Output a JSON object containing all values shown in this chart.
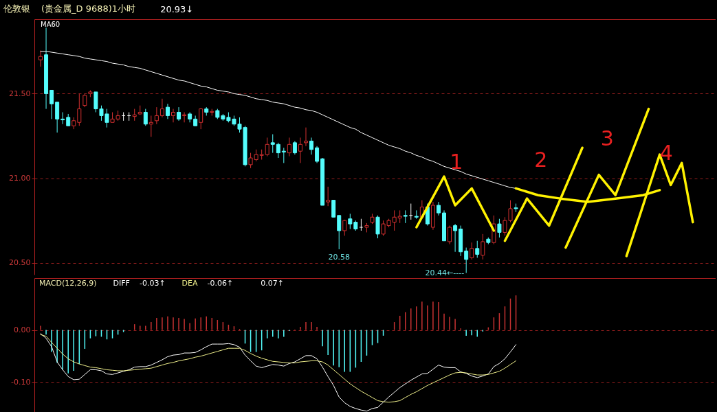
{
  "chart_data": [
    {
      "type": "candlestick",
      "title": "伦敦银",
      "subtitle": "(贵金属_D 9688)1小时",
      "categories": [
        null,
        null,
        null,
        null,
        null,
        null,
        null,
        null,
        null,
        null,
        null,
        null,
        null,
        null,
        null,
        null,
        null,
        null,
        null,
        null,
        null,
        null,
        null,
        null,
        null,
        null,
        null,
        null,
        null,
        null,
        null,
        null,
        null,
        null,
        null,
        null,
        null,
        null,
        null,
        null,
        null,
        null,
        null,
        null,
        null,
        null,
        null,
        null,
        null,
        null,
        null,
        null,
        null,
        null,
        null,
        null,
        null,
        null,
        null,
        null,
        null,
        null,
        null,
        null,
        null,
        null,
        null,
        null,
        null,
        null,
        null,
        null,
        null,
        null,
        null,
        null,
        null,
        null,
        null,
        null,
        null,
        null,
        null,
        null,
        null,
        null,
        null,
        null,
        null,
        null,
        null,
        null,
        null,
        null,
        null,
        null,
        null,
        null,
        null,
        null,
        null,
        null,
        null,
        null,
        null,
        null,
        null,
        null,
        null,
        null,
        null,
        null,
        null,
        null,
        null,
        null,
        null,
        null,
        null,
        null,
        null,
        null
      ],
      "ohlc": [
        [
          21.7,
          21.755,
          21.66,
          21.72
        ],
        [
          21.73,
          21.89,
          21.41,
          21.5
        ],
        [
          21.52,
          21.52,
          21.35,
          21.44
        ],
        [
          21.45,
          21.45,
          21.27,
          21.35
        ],
        [
          21.35,
          21.39,
          21.32,
          21.345
        ],
        [
          21.36,
          21.38,
          21.31,
          21.31
        ],
        [
          21.31,
          21.36,
          21.29,
          21.34
        ],
        [
          21.33,
          21.5,
          21.31,
          21.41
        ],
        [
          21.43,
          21.5,
          21.42,
          21.49
        ],
        [
          21.5,
          21.52,
          21.48,
          21.51
        ],
        [
          21.51,
          21.51,
          21.39,
          21.41
        ],
        [
          21.41,
          21.43,
          21.34,
          21.37
        ],
        [
          21.38,
          21.41,
          21.3,
          21.33
        ],
        [
          21.33,
          21.39,
          21.33,
          21.35
        ],
        [
          21.35,
          21.4,
          21.34,
          21.37
        ],
        [
          21.37,
          21.39,
          21.34,
          21.37
        ],
        [
          21.37,
          21.39,
          21.34,
          21.37
        ],
        [
          21.365,
          21.41,
          21.34,
          21.375
        ],
        [
          21.38,
          21.43,
          21.375,
          21.39
        ],
        [
          21.39,
          21.41,
          21.31,
          21.32
        ],
        [
          21.32,
          21.37,
          21.245,
          21.33
        ],
        [
          21.34,
          21.42,
          21.32,
          21.37
        ],
        [
          21.37,
          21.47,
          21.36,
          21.41
        ],
        [
          21.42,
          21.44,
          21.35,
          21.37
        ],
        [
          21.37,
          21.41,
          21.33,
          21.39
        ],
        [
          21.39,
          21.42,
          21.34,
          21.35
        ],
        [
          21.37,
          21.39,
          21.33,
          21.375
        ],
        [
          21.38,
          21.39,
          21.33,
          21.35
        ],
        [
          21.35,
          21.37,
          21.31,
          21.31
        ],
        [
          21.33,
          21.415,
          21.29,
          21.41
        ],
        [
          21.41,
          21.42,
          21.37,
          21.39
        ],
        [
          21.39,
          21.41,
          21.37,
          21.395
        ],
        [
          21.4,
          21.41,
          21.35,
          21.36
        ],
        [
          21.37,
          21.38,
          21.34,
          21.35
        ],
        [
          21.36,
          21.39,
          21.33,
          21.34
        ],
        [
          21.35,
          21.37,
          21.31,
          21.32
        ],
        [
          21.32,
          21.36,
          21.27,
          21.29
        ],
        [
          21.3,
          21.31,
          21.07,
          21.08
        ],
        [
          21.08,
          21.15,
          21.06,
          21.12
        ],
        [
          21.11,
          21.17,
          21.1,
          21.14
        ],
        [
          21.135,
          21.17,
          21.11,
          21.14
        ],
        [
          21.14,
          21.24,
          21.13,
          21.2
        ],
        [
          21.21,
          21.26,
          21.15,
          21.2
        ],
        [
          21.2,
          21.21,
          21.12,
          21.15
        ],
        [
          21.16,
          21.18,
          21.09,
          21.155
        ],
        [
          21.15,
          21.24,
          21.13,
          21.2
        ],
        [
          21.21,
          21.22,
          21.14,
          21.15
        ],
        [
          21.16,
          21.24,
          21.09,
          21.2
        ],
        [
          21.21,
          21.3,
          21.19,
          21.22
        ],
        [
          21.22,
          21.24,
          21.14,
          21.17
        ],
        [
          21.18,
          21.19,
          21.09,
          21.1
        ],
        [
          21.115,
          21.12,
          20.84,
          20.84
        ],
        [
          20.86,
          20.95,
          20.835,
          20.87
        ],
        [
          20.87,
          20.87,
          20.77,
          20.77
        ],
        [
          20.78,
          20.78,
          20.58,
          20.69
        ],
        [
          20.69,
          20.755,
          20.66,
          20.75
        ],
        [
          20.76,
          20.79,
          20.7,
          20.73
        ],
        [
          20.74,
          20.75,
          20.69,
          20.7
        ],
        [
          20.71,
          20.76,
          20.69,
          20.71
        ],
        [
          20.71,
          20.735,
          20.68,
          20.72
        ],
        [
          20.74,
          20.79,
          20.73,
          20.77
        ],
        [
          20.77,
          20.78,
          20.645,
          20.67
        ],
        [
          20.67,
          20.75,
          20.66,
          20.73
        ],
        [
          20.72,
          20.76,
          20.71,
          20.75
        ],
        [
          20.74,
          20.81,
          20.69,
          20.77
        ],
        [
          20.765,
          20.81,
          20.735,
          20.775
        ],
        [
          20.78,
          20.81,
          20.735,
          20.775
        ],
        [
          20.78,
          20.85,
          20.755,
          20.78
        ],
        [
          20.775,
          20.81,
          20.76,
          20.77
        ],
        [
          20.77,
          20.87,
          20.77,
          20.83
        ],
        [
          20.83,
          20.85,
          20.72,
          20.73
        ],
        [
          20.71,
          20.86,
          20.695,
          20.84
        ],
        [
          20.84,
          20.86,
          20.78,
          20.795
        ],
        [
          20.795,
          20.81,
          20.63,
          20.63
        ],
        [
          20.625,
          20.72,
          20.61,
          20.71
        ],
        [
          20.72,
          20.73,
          20.565,
          20.69
        ],
        [
          20.7,
          20.72,
          20.54,
          20.565
        ],
        [
          20.57,
          20.59,
          20.44,
          20.52
        ],
        [
          20.53,
          20.62,
          20.52,
          20.585
        ],
        [
          20.585,
          20.63,
          20.53,
          20.55
        ],
        [
          20.545,
          20.67,
          20.52,
          20.625
        ],
        [
          20.64,
          20.65,
          20.61,
          20.62
        ],
        [
          20.62,
          20.78,
          20.61,
          20.73
        ],
        [
          20.73,
          20.76,
          20.65,
          20.68
        ],
        [
          20.68,
          20.77,
          20.66,
          20.75
        ],
        [
          20.75,
          20.87,
          20.74,
          20.82
        ],
        [
          20.825,
          20.85,
          20.8,
          20.82
        ],
        null,
        null,
        null,
        null,
        null,
        null,
        null,
        null,
        null,
        null,
        null,
        null,
        null,
        null,
        null,
        null,
        null,
        null,
        null,
        null,
        null,
        null,
        null,
        null,
        null,
        null,
        null,
        null,
        null,
        null,
        null,
        null,
        null,
        null,
        null
      ],
      "colors": [
        "#d43030",
        "#54fcfc",
        "#54fcfc",
        "#54fcfc",
        "#54fcfc",
        "#54fcfc",
        "#d43030",
        "#d43030",
        "#d43030",
        "#d43030",
        "#54fcfc",
        "#54fcfc",
        "#54fcfc",
        "#d43030",
        "#d43030",
        "#ffffff",
        "#ffffff",
        "#d43030",
        "#d43030",
        "#54fcfc",
        "#d43030",
        "#d43030",
        "#d43030",
        "#54fcfc",
        "#d43030",
        "#54fcfc",
        "#d43030",
        "#54fcfc",
        "#54fcfc",
        "#d43030",
        "#54fcfc",
        "#d43030",
        "#54fcfc",
        "#54fcfc",
        "#54fcfc",
        "#54fcfc",
        "#54fcfc",
        "#54fcfc",
        "#d43030",
        "#d43030",
        "#d43030",
        "#d43030",
        "#54fcfc",
        "#54fcfc",
        "#54fcfc",
        "#d43030",
        "#54fcfc",
        "#d43030",
        "#d43030",
        "#54fcfc",
        "#54fcfc",
        "#54fcfc",
        "#d43030",
        "#54fcfc",
        "#54fcfc",
        "#d43030",
        "#54fcfc",
        "#54fcfc",
        "#ffffff",
        "#d43030",
        "#d43030",
        "#54fcfc",
        "#d43030",
        "#d43030",
        "#d43030",
        "#d43030",
        "#54fcfc",
        "#ffffff",
        "#54fcfc",
        "#d43030",
        "#54fcfc",
        "#d43030",
        "#54fcfc",
        "#54fcfc",
        "#d43030",
        "#54fcfc",
        "#54fcfc",
        "#54fcfc",
        "#d43030",
        "#54fcfc",
        "#d43030",
        "#54fcfc",
        "#d43030",
        "#54fcfc",
        "#d43030",
        "#d43030",
        "#54fcfc",
        null,
        null,
        null,
        null,
        null,
        null,
        null,
        null,
        null,
        null,
        null,
        null,
        null,
        null,
        null,
        null,
        null,
        null,
        null,
        null,
        null,
        null,
        null,
        null,
        null,
        null,
        null,
        null,
        null,
        null,
        null,
        null,
        null,
        null,
        null
      ],
      "series": [
        {
          "name": "MA60",
          "type": "line",
          "color": "#ffffff",
          "values": [
            21.75,
            21.75,
            21.745,
            21.74,
            21.735,
            21.73,
            21.725,
            21.72,
            21.71,
            21.705,
            21.7,
            21.695,
            21.69,
            21.68,
            21.675,
            21.67,
            21.66,
            21.655,
            21.65,
            21.64,
            21.63,
            21.62,
            21.61,
            21.6,
            21.59,
            21.58,
            21.575,
            21.565,
            21.555,
            21.545,
            21.54,
            21.53,
            21.52,
            21.515,
            21.51,
            21.5,
            21.495,
            21.49,
            21.48,
            21.47,
            21.465,
            21.46,
            21.45,
            21.445,
            21.44,
            21.43,
            21.42,
            21.415,
            21.405,
            21.4,
            21.39,
            21.375,
            21.36,
            21.345,
            21.33,
            21.315,
            21.3,
            21.29,
            21.27,
            21.255,
            21.24,
            21.225,
            21.21,
            21.195,
            21.185,
            21.175,
            21.16,
            21.15,
            21.135,
            21.125,
            21.11,
            21.1,
            21.085,
            21.07,
            21.06,
            21.05,
            21.04,
            21.025,
            21.015,
            21.005,
            20.995,
            20.985,
            20.975,
            20.965,
            20.955,
            20.945,
            20.94,
            null,
            null,
            null,
            null,
            null,
            null,
            null,
            null,
            null,
            null,
            null,
            null,
            null,
            null,
            null,
            null,
            null,
            null,
            null,
            null,
            null,
            null,
            null,
            null,
            null,
            null,
            null,
            null,
            null,
            null,
            null,
            null,
            null,
            null,
            null
          ]
        },
        {
          "name": "1",
          "type": "line",
          "color": "#fff200",
          "values": [
            null,
            null,
            null,
            null,
            null,
            null,
            null,
            null,
            null,
            null,
            null,
            null,
            null,
            null,
            null,
            null,
            null,
            null,
            null,
            null,
            null,
            null,
            null,
            null,
            null,
            null,
            null,
            null,
            null,
            null,
            null,
            null,
            null,
            null,
            null,
            null,
            null,
            null,
            null,
            null,
            null,
            null,
            null,
            null,
            null,
            null,
            null,
            null,
            null,
            null,
            null,
            null,
            null,
            null,
            null,
            null,
            null,
            null,
            null,
            null,
            null,
            null,
            null,
            null,
            null,
            null,
            null,
            null,
            20.71,
            null,
            null,
            null,
            null,
            21.01,
            null,
            20.84,
            null,
            null,
            20.94,
            null,
            null,
            null,
            20.69,
            null,
            null,
            null,
            null,
            null,
            null,
            null,
            null,
            null,
            null,
            null,
            null,
            null,
            null,
            null,
            null,
            null,
            null,
            null,
            null,
            null,
            null,
            null,
            null,
            null,
            null,
            null,
            null,
            null,
            null,
            null,
            null,
            null,
            null,
            null,
            null,
            null,
            null,
            null
          ]
        },
        {
          "name": "2",
          "type": "line",
          "color": "#fff200",
          "values": [
            null,
            null,
            null,
            null,
            null,
            null,
            null,
            null,
            null,
            null,
            null,
            null,
            null,
            null,
            null,
            null,
            null,
            null,
            null,
            null,
            null,
            null,
            null,
            null,
            null,
            null,
            null,
            null,
            null,
            null,
            null,
            null,
            null,
            null,
            null,
            null,
            null,
            null,
            null,
            null,
            null,
            null,
            null,
            null,
            null,
            null,
            null,
            null,
            null,
            null,
            null,
            null,
            null,
            null,
            null,
            null,
            null,
            null,
            null,
            null,
            null,
            null,
            null,
            null,
            null,
            null,
            null,
            null,
            null,
            null,
            null,
            null,
            null,
            null,
            null,
            null,
            null,
            null,
            null,
            null,
            null,
            null,
            null,
            null,
            20.63,
            null,
            null,
            null,
            20.88,
            null,
            null,
            null,
            20.72,
            null,
            null,
            null,
            null,
            null,
            21.18,
            null,
            null,
            null,
            null,
            null,
            null,
            null,
            null,
            null,
            null,
            null,
            null,
            null,
            null,
            null,
            null,
            null,
            null,
            null,
            null,
            null,
            null,
            null
          ]
        },
        {
          "name": "3",
          "type": "line",
          "color": "#fff200",
          "values": [
            null,
            null,
            null,
            null,
            null,
            null,
            null,
            null,
            null,
            null,
            null,
            null,
            null,
            null,
            null,
            null,
            null,
            null,
            null,
            null,
            null,
            null,
            null,
            null,
            null,
            null,
            null,
            null,
            null,
            null,
            null,
            null,
            null,
            null,
            null,
            null,
            null,
            null,
            null,
            null,
            null,
            null,
            null,
            null,
            null,
            null,
            null,
            null,
            null,
            null,
            null,
            null,
            null,
            null,
            null,
            null,
            null,
            null,
            null,
            null,
            null,
            null,
            null,
            null,
            null,
            null,
            null,
            null,
            null,
            null,
            null,
            null,
            null,
            null,
            null,
            null,
            null,
            null,
            null,
            null,
            null,
            null,
            null,
            null,
            null,
            null,
            null,
            null,
            null,
            null,
            null,
            null,
            null,
            null,
            null,
            20.59,
            null,
            null,
            null,
            null,
            null,
            21.02,
            null,
            null,
            20.9,
            null,
            null,
            null,
            null,
            null,
            21.41,
            null,
            null,
            null,
            null,
            null,
            null,
            null,
            null,
            null,
            null,
            null
          ]
        },
        {
          "name": "4",
          "type": "line",
          "color": "#fff200",
          "values": [
            null,
            null,
            null,
            null,
            null,
            null,
            null,
            null,
            null,
            null,
            null,
            null,
            null,
            null,
            null,
            null,
            null,
            null,
            null,
            null,
            null,
            null,
            null,
            null,
            null,
            null,
            null,
            null,
            null,
            null,
            null,
            null,
            null,
            null,
            null,
            null,
            null,
            null,
            null,
            null,
            null,
            null,
            null,
            null,
            null,
            null,
            null,
            null,
            null,
            null,
            null,
            null,
            null,
            null,
            null,
            null,
            null,
            null,
            null,
            null,
            null,
            null,
            null,
            null,
            null,
            null,
            null,
            null,
            null,
            null,
            null,
            null,
            null,
            null,
            null,
            null,
            null,
            null,
            null,
            null,
            null,
            null,
            null,
            null,
            null,
            null,
            null,
            null,
            null,
            null,
            null,
            null,
            null,
            null,
            null,
            null,
            null,
            null,
            null,
            null,
            null,
            null,
            null,
            null,
            null,
            null,
            20.54,
            null,
            null,
            null,
            null,
            null,
            21.14,
            null,
            20.96,
            null,
            21.09,
            null,
            20.74,
            null,
            null,
            null
          ]
        },
        {
          "type": "line",
          "color": "#fff200",
          "values": [
            null,
            null,
            null,
            null,
            null,
            null,
            null,
            null,
            null,
            null,
            null,
            null,
            null,
            null,
            null,
            null,
            null,
            null,
            null,
            null,
            null,
            null,
            null,
            null,
            null,
            null,
            null,
            null,
            null,
            null,
            null,
            null,
            null,
            null,
            null,
            null,
            null,
            null,
            null,
            null,
            null,
            null,
            null,
            null,
            null,
            null,
            null,
            null,
            null,
            null,
            null,
            null,
            null,
            null,
            null,
            null,
            null,
            null,
            null,
            null,
            null,
            null,
            null,
            null,
            null,
            null,
            null,
            null,
            null,
            null,
            null,
            null,
            null,
            null,
            null,
            null,
            null,
            null,
            null,
            null,
            null,
            null,
            null,
            null,
            null,
            null,
            20.94,
            null,
            null,
            null,
            20.9,
            null,
            null,
            null,
            20.88,
            null,
            null,
            null,
            null,
            20.86,
            null,
            null,
            null,
            null,
            20.88,
            null,
            null,
            null,
            null,
            20.9,
            null,
            null,
            20.93,
            null,
            null,
            null,
            null,
            null,
            null,
            null,
            null,
            null
          ]
        }
      ],
      "annotations": [
        "20.93↓",
        {
          "text": "20.58",
          "y": 20.58
        },
        "20.44←----"
      ],
      "ylim": [
        20.43,
        21.94
      ],
      "yticks": [
        {
          "value": 20.5,
          "label": "20.50"
        },
        {
          "value": 21,
          "label": "21.00"
        },
        {
          "value": 21.5,
          "label": "21.50"
        }
      ],
      "grid": "y",
      "tick_labels": "y"
    },
    {
      "type": "bar",
      "title": "MACD(12,26,9)",
      "categories": [
        null,
        null,
        null,
        null,
        null,
        null,
        null,
        null,
        null,
        null,
        null,
        null,
        null,
        null,
        null,
        null,
        null,
        null,
        null,
        null,
        null,
        null,
        null,
        null,
        null,
        null,
        null,
        null,
        null,
        null,
        null,
        null,
        null,
        null,
        null,
        null,
        null,
        null,
        null,
        null,
        null,
        null,
        null,
        null,
        null,
        null,
        null,
        null,
        null,
        null,
        null,
        null,
        null,
        null,
        null,
        null,
        null,
        null,
        null,
        null,
        null,
        null,
        null,
        null,
        null,
        null,
        null,
        null,
        null,
        null,
        null,
        null,
        null,
        null,
        null,
        null,
        null,
        null,
        null,
        null,
        null,
        null,
        null,
        null,
        null,
        null,
        null,
        null,
        null,
        null,
        null,
        null,
        null,
        null,
        null,
        null,
        null,
        null,
        null,
        null,
        null,
        null,
        null,
        null,
        null,
        null,
        null,
        null,
        null,
        null,
        null,
        null,
        null,
        null,
        null,
        null,
        null,
        null,
        null,
        null,
        null,
        null
      ],
      "series": [
        {
          "type": "bar",
          "values": [
            0.008,
            -0.009,
            -0.042,
            -0.063,
            -0.076,
            -0.083,
            -0.078,
            -0.065,
            -0.036,
            -0.016,
            -0.012,
            -0.013,
            -0.018,
            -0.016,
            -0.009,
            -0.004,
            0,
            0.011,
            0.008,
            0.008,
            0.015,
            0.023,
            0.024,
            0.026,
            0.024,
            0.023,
            0.021,
            0.013,
            0.022,
            0.024,
            0.026,
            0.023,
            0.019,
            0.015,
            0.01,
            0.007,
            0.002,
            -0.026,
            -0.042,
            -0.042,
            -0.039,
            -0.016,
            -0.013,
            -0.016,
            -0.013,
            -0.002,
            0.001,
            0.006,
            0.015,
            0.015,
            0.006,
            -0.031,
            -0.048,
            -0.068,
            -0.071,
            -0.08,
            -0.08,
            -0.072,
            -0.061,
            -0.049,
            -0.029,
            -0.025,
            -0.011,
            0,
            0.015,
            0.027,
            0.034,
            0.041,
            0.045,
            0.054,
            0.047,
            0.054,
            0.053,
            0.031,
            0.025,
            0.021,
            0.003,
            -0.011,
            -0.01,
            -0.013,
            -0.003,
            0.005,
            0.024,
            0.032,
            0.045,
            0.06,
            0.066,
            null,
            null,
            null,
            null,
            null,
            null,
            null,
            null,
            null,
            null,
            null,
            null,
            null,
            null,
            null,
            null,
            null,
            null,
            null,
            null,
            null,
            null,
            null,
            null,
            null,
            null,
            null,
            null,
            null,
            null,
            null,
            null,
            null,
            null,
            null
          ],
          "colors": [
            "#c83232",
            "#54fcfc",
            "#54fcfc",
            "#54fcfc",
            "#54fcfc",
            "#54fcfc",
            "#54fcfc",
            "#54fcfc",
            "#54fcfc",
            "#54fcfc",
            "#54fcfc",
            "#54fcfc",
            "#54fcfc",
            "#54fcfc",
            "#54fcfc",
            "#54fcfc",
            "#c83232",
            "#c83232",
            "#c83232",
            "#c83232",
            "#c83232",
            "#c83232",
            "#c83232",
            "#c83232",
            "#c83232",
            "#c83232",
            "#c83232",
            "#c83232",
            "#c83232",
            "#c83232",
            "#c83232",
            "#c83232",
            "#c83232",
            "#c83232",
            "#c83232",
            "#c83232",
            "#c83232",
            "#54fcfc",
            "#54fcfc",
            "#54fcfc",
            "#54fcfc",
            "#54fcfc",
            "#54fcfc",
            "#54fcfc",
            "#54fcfc",
            "#54fcfc",
            "#c83232",
            "#c83232",
            "#c83232",
            "#c83232",
            "#c83232",
            "#54fcfc",
            "#54fcfc",
            "#54fcfc",
            "#54fcfc",
            "#54fcfc",
            "#54fcfc",
            "#54fcfc",
            "#54fcfc",
            "#54fcfc",
            "#54fcfc",
            "#54fcfc",
            "#54fcfc",
            "#c83232",
            "#c83232",
            "#c83232",
            "#c83232",
            "#c83232",
            "#c83232",
            "#c83232",
            "#c83232",
            "#c83232",
            "#c83232",
            "#c83232",
            "#c83232",
            "#c83232",
            "#c83232",
            "#54fcfc",
            "#54fcfc",
            "#54fcfc",
            "#54fcfc",
            "#c83232",
            "#c83232",
            "#c83232",
            "#c83232",
            "#c83232",
            "#c83232",
            null,
            null,
            null,
            null,
            null,
            null,
            null,
            null,
            null,
            null,
            null,
            null,
            null,
            null,
            null,
            null,
            null,
            null,
            null,
            null,
            null,
            null,
            null,
            null,
            null,
            null,
            null,
            null,
            null,
            null,
            null,
            null,
            null,
            null,
            null
          ]
        },
        {
          "name": "DIFF",
          "type": "line",
          "color": "#ffffff",
          "values": [
            -0.007,
            -0.016,
            -0.032,
            -0.061,
            -0.076,
            -0.089,
            -0.095,
            -0.094,
            -0.085,
            -0.076,
            -0.076,
            -0.078,
            -0.084,
            -0.085,
            -0.082,
            -0.079,
            -0.076,
            -0.071,
            -0.07,
            -0.07,
            -0.067,
            -0.062,
            -0.057,
            -0.051,
            -0.048,
            -0.047,
            -0.044,
            -0.044,
            -0.043,
            -0.038,
            -0.032,
            -0.027,
            -0.027,
            -0.027,
            -0.026,
            -0.028,
            -0.033,
            -0.048,
            -0.059,
            -0.069,
            -0.072,
            -0.069,
            -0.066,
            -0.067,
            -0.069,
            -0.064,
            -0.061,
            -0.055,
            -0.049,
            -0.049,
            -0.055,
            -0.071,
            -0.089,
            -0.106,
            -0.128,
            -0.139,
            -0.146,
            -0.15,
            -0.153,
            -0.155,
            -0.15,
            -0.148,
            -0.138,
            -0.128,
            -0.119,
            -0.11,
            -0.103,
            -0.096,
            -0.09,
            -0.084,
            -0.083,
            -0.075,
            -0.067,
            -0.071,
            -0.072,
            -0.072,
            -0.08,
            -0.083,
            -0.088,
            -0.091,
            -0.088,
            -0.084,
            -0.07,
            -0.064,
            -0.055,
            -0.042,
            -0.028,
            null,
            null,
            null,
            null,
            null,
            null,
            null,
            null,
            null,
            null,
            null,
            null,
            null,
            null,
            null,
            null,
            null,
            null,
            null,
            null,
            null,
            null,
            null,
            null,
            null,
            null,
            null,
            null,
            null,
            null,
            null,
            null,
            null,
            null,
            null
          ]
        },
        {
          "name": "DEA",
          "type": "line",
          "color": "#f0f08c",
          "values": [
            -0.009,
            -0.012,
            -0.024,
            -0.035,
            -0.046,
            -0.055,
            -0.061,
            -0.065,
            -0.068,
            -0.071,
            -0.072,
            -0.074,
            -0.076,
            -0.077,
            -0.078,
            -0.078,
            -0.077,
            -0.076,
            -0.075,
            -0.074,
            -0.073,
            -0.07,
            -0.067,
            -0.064,
            -0.062,
            -0.059,
            -0.057,
            -0.055,
            -0.052,
            -0.05,
            -0.047,
            -0.044,
            -0.041,
            -0.038,
            -0.035,
            -0.035,
            -0.035,
            -0.039,
            -0.045,
            -0.05,
            -0.054,
            -0.057,
            -0.06,
            -0.061,
            -0.062,
            -0.063,
            -0.063,
            -0.061,
            -0.06,
            -0.059,
            -0.059,
            -0.061,
            -0.067,
            -0.076,
            -0.085,
            -0.094,
            -0.103,
            -0.11,
            -0.117,
            -0.123,
            -0.129,
            -0.135,
            -0.137,
            -0.138,
            -0.137,
            -0.135,
            -0.129,
            -0.123,
            -0.118,
            -0.112,
            -0.106,
            -0.101,
            -0.096,
            -0.091,
            -0.086,
            -0.082,
            -0.081,
            -0.082,
            -0.084,
            -0.086,
            -0.086,
            -0.085,
            -0.082,
            -0.079,
            -0.073,
            -0.066,
            -0.059,
            null,
            null,
            null,
            null,
            null,
            null,
            null,
            null,
            null,
            null,
            null,
            null,
            null,
            null,
            null,
            null,
            null,
            null,
            null,
            null,
            null,
            null,
            null,
            null,
            null,
            null,
            null,
            null,
            null,
            null,
            null,
            null,
            null,
            null,
            null
          ]
        }
      ],
      "annotations": [
        "-0.03↑",
        "-0.06↑",
        "0.07↑"
      ],
      "ylim": [
        -0.158,
        0.099
      ],
      "yticks": [
        {
          "value": -0.1,
          "label": "-0.10"
        },
        {
          "value": 0,
          "label": "0.00"
        }
      ],
      "grid": "y",
      "tick_labels": "y"
    }
  ]
}
